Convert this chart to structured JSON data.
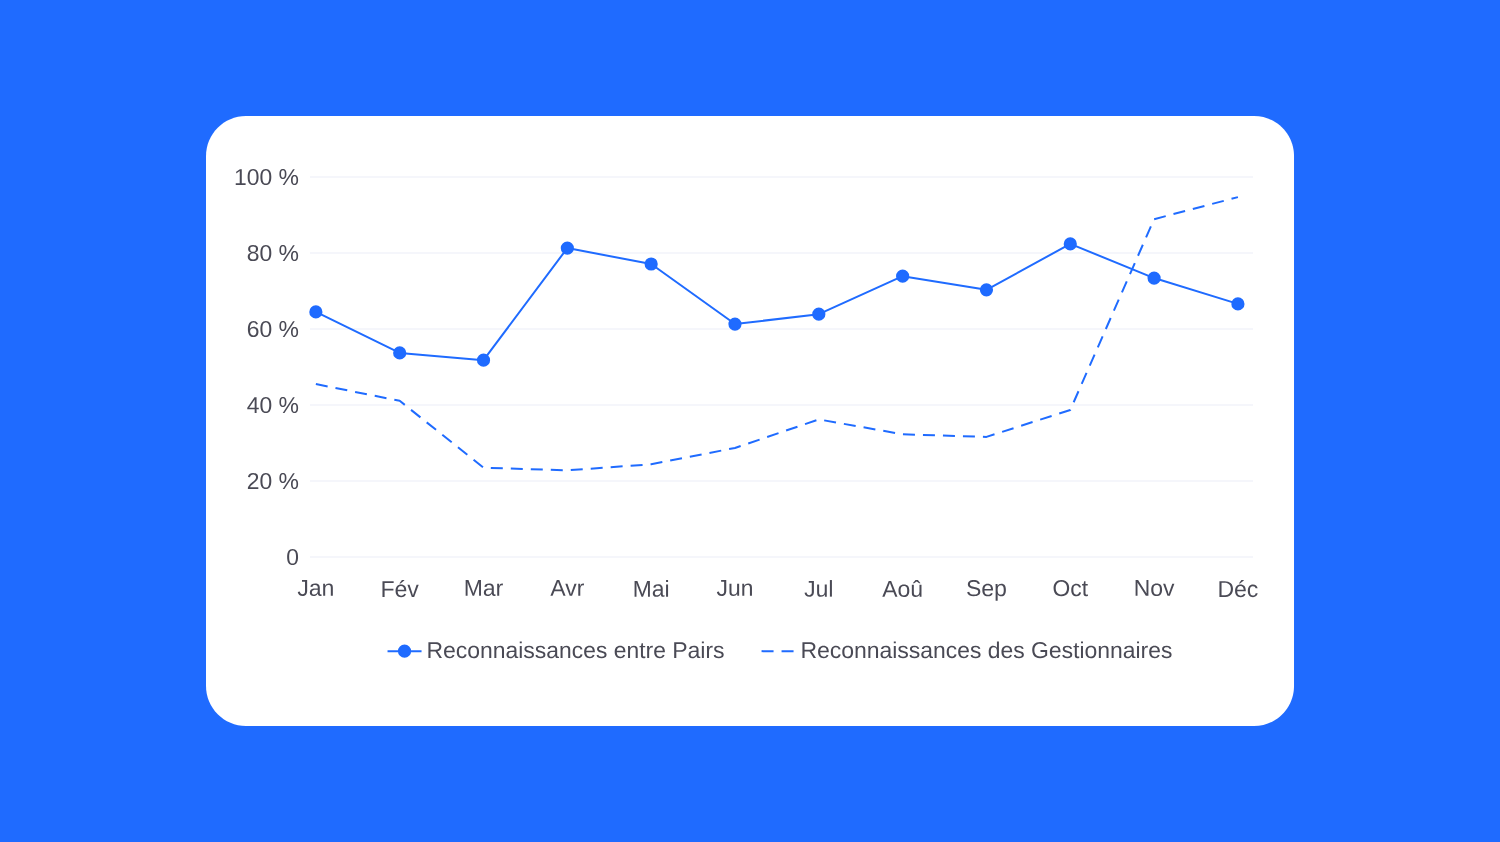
{
  "chart_data": {
    "type": "line",
    "categories": [
      "Jan",
      "Fév",
      "Mar",
      "Avr",
      "Mai",
      "Jun",
      "Jul",
      "Aoû",
      "Sep",
      "Oct",
      "Nov",
      "Déc"
    ],
    "ylim": [
      0,
      100
    ],
    "yticks": [
      0,
      {
        "value": 20,
        "label": "20 %"
      },
      {
        "value": 40,
        "label": "40 %"
      },
      {
        "value": 60,
        "label": "60 %"
      },
      {
        "value": 80,
        "label": "80 %"
      },
      {
        "value": 100,
        "label": "100 %"
      }
    ],
    "grid": "y",
    "legend": "bottom",
    "series": [
      {
        "name": "Reconnaissances entre Pairs",
        "color": "#1f6bff",
        "marker": "circle",
        "line_style": "solid",
        "values": [
          64.5,
          53.7,
          51.8,
          81.3,
          77.1,
          61.3,
          63.9,
          73.9,
          70.3,
          82.4,
          73.4,
          66.6
        ]
      },
      {
        "name": "Reconnaissances des Gestionnaires",
        "color": "#1f6bff",
        "marker": "none",
        "line_style": "dashed",
        "values": [
          45.5,
          41.1,
          23.5,
          22.8,
          24.4,
          28.7,
          36.2,
          32.3,
          31.6,
          38.7,
          88.9,
          94.7
        ]
      }
    ]
  }
}
